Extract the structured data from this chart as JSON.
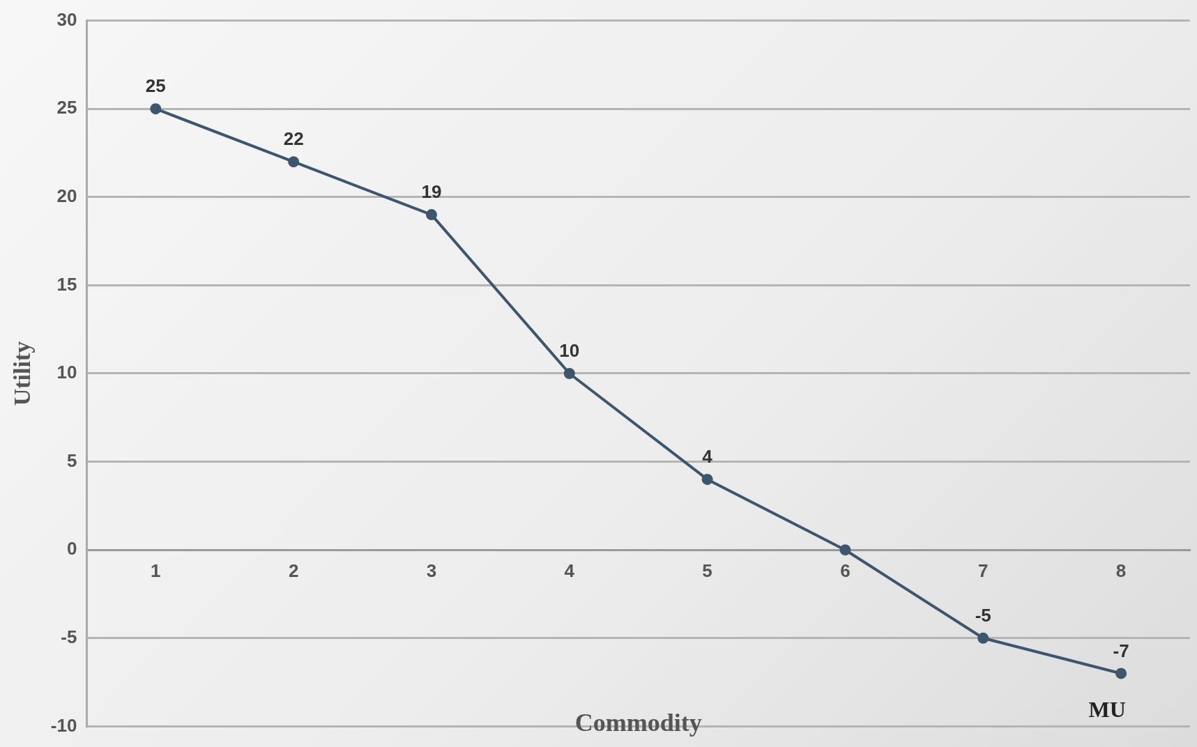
{
  "chart_data": {
    "type": "line",
    "xlabel": "Commodity",
    "ylabel": "Utility",
    "categories": [
      "1",
      "2",
      "3",
      "4",
      "5",
      "6",
      "7",
      "8"
    ],
    "series": [
      {
        "name": "MU",
        "color": "#3e556e",
        "values": [
          25,
          22,
          19,
          10,
          4,
          0,
          -5,
          -7
        ],
        "value_labels": [
          "25",
          "22",
          "19",
          "10",
          "4",
          null,
          "-5",
          "-7"
        ]
      }
    ],
    "ylim": [
      -10,
      30
    ],
    "yticks": [
      -10,
      -5,
      0,
      5,
      10,
      15,
      20,
      25,
      30
    ],
    "grid": "y",
    "legend": false,
    "marker": "circle",
    "line_style": "solid"
  }
}
